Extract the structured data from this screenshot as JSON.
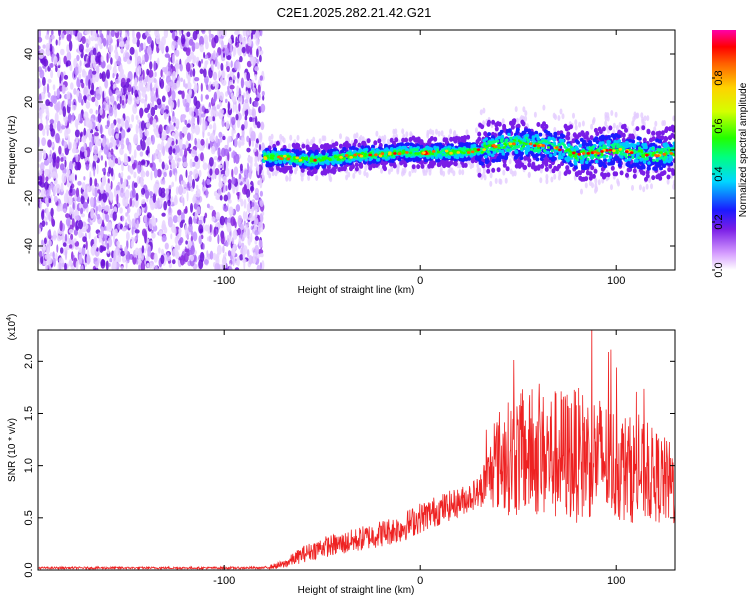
{
  "title": "C2E1.2025.282.21.42.G21",
  "chart_data": [
    {
      "type": "heatmap",
      "name": "spectrogram",
      "xlabel": "Height of straight line (km)",
      "ylabel": "Frequency (Hz)",
      "xlim": [
        -195,
        130
      ],
      "ylim": [
        -50,
        50
      ],
      "xticks": [
        -100,
        0,
        100
      ],
      "yticks": [
        -40,
        -20,
        0,
        20,
        40
      ],
      "noise_region_x": [
        -195,
        -80
      ],
      "signal_region_x": [
        -80,
        130
      ],
      "ridge": {
        "x": [
          -80,
          -70,
          -60,
          -50,
          -40,
          -30,
          -20,
          -10,
          0,
          10,
          20,
          30,
          40,
          50,
          60,
          70,
          80,
          90,
          100,
          110,
          120,
          130
        ],
        "freq": [
          -3,
          -3,
          -4,
          -4,
          -3,
          -2,
          -2,
          -1,
          -1,
          -1,
          -1,
          0,
          2,
          3,
          2,
          1,
          -2,
          -1,
          0,
          -1,
          -2,
          -1
        ]
      },
      "colorbar": {
        "label": "Normalized spectral amplitude",
        "ticks": [
          0.0,
          0.2,
          0.4,
          0.6,
          0.8
        ],
        "range": [
          0,
          1
        ]
      }
    },
    {
      "type": "line",
      "name": "snr",
      "xlabel": "Height of straight line (km)",
      "ylabel": "SNR (10 * v/v)",
      "scale_label_prefix": "(x10",
      "scale_label_exp": "4",
      "scale_label_suffix": ")",
      "xlim": [
        -195,
        130
      ],
      "ylim": [
        0,
        23000
      ],
      "xticks": [
        -100,
        0,
        100
      ],
      "yticks": [
        0,
        5000,
        10000,
        15000,
        20000
      ],
      "ytick_labels": [
        "0.0",
        "0.5",
        "1.0",
        "1.5",
        "2.0"
      ],
      "series": [
        {
          "name": "SNR",
          "color": "#ee2222",
          "envelope_x": [
            -195,
            -80,
            -70,
            -60,
            -50,
            -40,
            -30,
            -20,
            -10,
            0,
            10,
            20,
            30,
            35,
            40,
            50,
            60,
            70,
            80,
            90,
            100,
            110,
            120,
            130
          ],
          "envelope_y": [
            200,
            200,
            500,
            1500,
            2200,
            2500,
            3000,
            3500,
            4000,
            5000,
            5800,
            6500,
            7500,
            9000,
            10500,
            11000,
            11000,
            11000,
            11000,
            11000,
            10000,
            9500,
            9000,
            8000
          ],
          "spread": [
            100,
            100,
            400,
            800,
            1000,
            1100,
            1200,
            1300,
            1400,
            1500,
            1500,
            1400,
            1500,
            3000,
            5000,
            6000,
            6000,
            6500,
            6500,
            6000,
            5500,
            5000,
            4500,
            4000
          ]
        }
      ]
    }
  ],
  "colors": {
    "accent": "#ee2222",
    "noise": "#8a2be2"
  }
}
